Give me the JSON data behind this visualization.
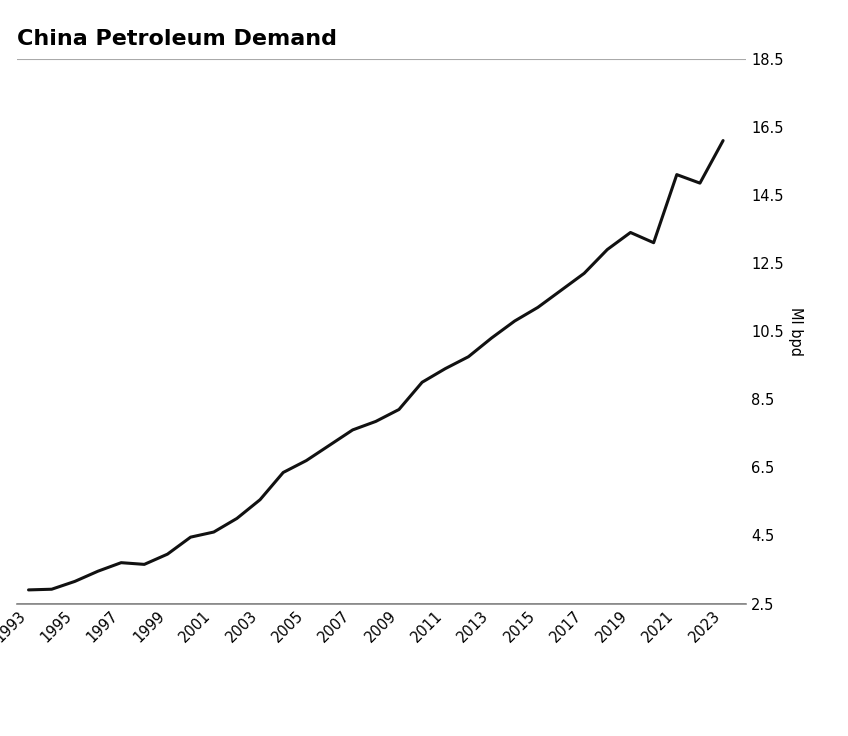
{
  "title": "China Petroleum Demand",
  "ylabel": "Ml bpd",
  "ylim": [
    2.5,
    18.5
  ],
  "yticks": [
    2.5,
    4.5,
    6.5,
    8.5,
    10.5,
    12.5,
    14.5,
    16.5,
    18.5
  ],
  "xlim_min": 1992.5,
  "xlim_max": 2024.0,
  "xticks": [
    1993,
    1995,
    1997,
    1999,
    2001,
    2003,
    2005,
    2007,
    2009,
    2011,
    2013,
    2015,
    2017,
    2019,
    2021,
    2023
  ],
  "background_color": "#ffffff",
  "line_color": "#111111",
  "line_width": 2.2,
  "title_fontsize": 16,
  "title_fontweight": "bold",
  "tick_fontsize": 10.5,
  "ylabel_fontsize": 10.5,
  "years": [
    1993,
    1994,
    1995,
    1996,
    1997,
    1998,
    1999,
    2000,
    2001,
    2002,
    2003,
    2004,
    2005,
    2006,
    2007,
    2008,
    2009,
    2010,
    2011,
    2012,
    2013,
    2014,
    2015,
    2016,
    2017,
    2018,
    2019,
    2020,
    2021,
    2022,
    2023
  ],
  "values": [
    2.9,
    2.92,
    3.15,
    3.45,
    3.7,
    3.65,
    3.95,
    4.45,
    4.6,
    5.0,
    5.55,
    6.35,
    6.7,
    7.15,
    7.6,
    7.85,
    8.2,
    9.0,
    9.4,
    9.75,
    10.3,
    10.8,
    11.2,
    11.7,
    12.2,
    12.9,
    13.4,
    13.1,
    15.1,
    14.85,
    16.1
  ]
}
